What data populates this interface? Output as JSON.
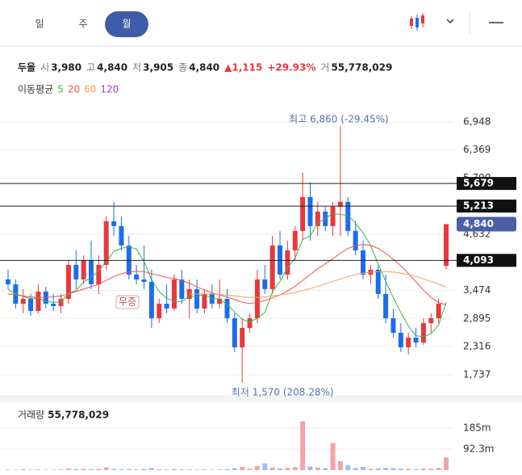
{
  "header": {
    "tabs": [
      "일",
      "주",
      "월"
    ],
    "active_tab": 2,
    "stock": {
      "name": "두올",
      "open_label": "시",
      "open": "3,980",
      "high_label": "고",
      "high": "4,840",
      "low_label": "저",
      "low": "3,905",
      "close_label": "종",
      "close": "4,840",
      "change": "▲1,115",
      "change_pct": "+29.93%",
      "volume_label": "거",
      "volume": "55,778,029"
    },
    "ma_label": "이동평균"
  },
  "chart_data": {
    "type": "candlestick",
    "up_color": "#e8383d",
    "down_color": "#1c6ee8",
    "categories": [
      null,
      null,
      null,
      null,
      null,
      null,
      null,
      null,
      null,
      null,
      null,
      null,
      null,
      null,
      null,
      null,
      null,
      null,
      null,
      null,
      null,
      null,
      null,
      null,
      null,
      null,
      null,
      null,
      null,
      null,
      null,
      null,
      null,
      null,
      null,
      null,
      null,
      null,
      null,
      null,
      null,
      null,
      null,
      null,
      null,
      null,
      null,
      null,
      null,
      null,
      null,
      null,
      null,
      null,
      null,
      null,
      null,
      null,
      null
    ],
    "open": [
      3700,
      3600,
      3200,
      3300,
      3050,
      3450,
      3200,
      3150,
      3300,
      4000,
      3700,
      4100,
      3600,
      4000,
      4900,
      4800,
      4400,
      3800,
      3700,
      3650,
      2900,
      3200,
      3100,
      3700,
      3300,
      3500,
      3100,
      3400,
      3200,
      3300,
      2900,
      2300,
      2700,
      2900,
      3700,
      3500,
      4400,
      3800,
      4300,
      4700,
      5400,
      4800,
      5100,
      4800,
      5200,
      5300,
      4700,
      4300,
      3800,
      3900,
      3400,
      2900,
      2600,
      2300,
      2500,
      2400,
      2800,
      2900,
      3980
    ],
    "high": [
      3900,
      3700,
      3500,
      3400,
      3600,
      3550,
      3400,
      3400,
      4100,
      4300,
      4200,
      4500,
      4200,
      5000,
      5300,
      5000,
      4600,
      4000,
      4400,
      3900,
      3300,
      3600,
      3800,
      3900,
      3700,
      3700,
      3500,
      3600,
      3700,
      3500,
      3000,
      2900,
      3000,
      3900,
      4000,
      4600,
      4700,
      4500,
      4800,
      5900,
      5700,
      5300,
      5200,
      5300,
      6860,
      5400,
      4900,
      4500,
      4000,
      4000,
      3800,
      3100,
      2800,
      2600,
      2700,
      2900,
      3000,
      3300,
      4840
    ],
    "low": [
      3500,
      3100,
      3000,
      2950,
      3000,
      3100,
      3050,
      3000,
      3200,
      3500,
      3600,
      3500,
      3400,
      3900,
      4600,
      4300,
      3700,
      3600,
      3500,
      2700,
      2800,
      3000,
      3050,
      3200,
      2900,
      3000,
      3000,
      3100,
      3100,
      2800,
      2200,
      1570,
      2600,
      2800,
      3400,
      3400,
      3700,
      3700,
      4100,
      4500,
      4500,
      4600,
      4700,
      4600,
      4600,
      4600,
      4200,
      3700,
      3600,
      3300,
      2800,
      2500,
      2200,
      2150,
      2300,
      2350,
      2600,
      2800,
      3905
    ],
    "close": [
      3600,
      3200,
      3300,
      3050,
      3450,
      3200,
      3150,
      3300,
      4000,
      3700,
      4100,
      3600,
      4000,
      4900,
      4800,
      4400,
      3800,
      3700,
      3650,
      2900,
      3200,
      3100,
      3700,
      3300,
      3500,
      3100,
      3400,
      3200,
      3300,
      2900,
      2300,
      2700,
      2900,
      3700,
      3500,
      4400,
      3800,
      4300,
      4700,
      5400,
      4800,
      5100,
      4800,
      5200,
      5300,
      4700,
      4300,
      3800,
      3900,
      3400,
      2900,
      2600,
      2300,
      2500,
      2400,
      2800,
      2900,
      3200,
      4840
    ],
    "series": [
      {
        "name": "5",
        "color": "#3cb44b",
        "values": [
          3500,
          3400,
          3350,
          3300,
          3320,
          3240,
          3230,
          3230,
          3420,
          3470,
          3650,
          3740,
          3880,
          4060,
          4280,
          4340,
          4380,
          4320,
          4070,
          3690,
          3450,
          3310,
          3250,
          3240,
          3360,
          3340,
          3400,
          3300,
          3300,
          3180,
          3020,
          2880,
          2820,
          2900,
          3020,
          3440,
          3660,
          3940,
          4140,
          4520,
          4600,
          4860,
          4960,
          5060,
          5040,
          5020,
          4860,
          4660,
          4400,
          4020,
          3660,
          3320,
          3020,
          2740,
          2540,
          2520,
          2580,
          2760,
          3230
        ]
      },
      {
        "name": "20",
        "color": "#f0534f",
        "values": [
          3400,
          3380,
          3360,
          3340,
          3330,
          3330,
          3340,
          3360,
          3400,
          3450,
          3500,
          3550,
          3600,
          3680,
          3760,
          3820,
          3850,
          3870,
          3860,
          3820,
          3780,
          3740,
          3720,
          3680,
          3620,
          3550,
          3480,
          3420,
          3380,
          3340,
          3280,
          3230,
          3200,
          3230,
          3260,
          3320,
          3380,
          3460,
          3560,
          3680,
          3800,
          3920,
          4020,
          4130,
          4240,
          4340,
          4400,
          4420,
          4400,
          4340,
          4240,
          4120,
          3980,
          3820,
          3650,
          3480,
          3330,
          3220,
          3180
        ]
      },
      {
        "name": "60",
        "color": "#f5a05a",
        "values": [
          null,
          null,
          null,
          null,
          null,
          null,
          null,
          null,
          null,
          null,
          null,
          null,
          null,
          null,
          null,
          null,
          null,
          null,
          null,
          null,
          null,
          null,
          null,
          null,
          3400,
          3400,
          3400,
          3400,
          3390,
          3380,
          3360,
          3340,
          3330,
          3330,
          3340,
          3360,
          3380,
          3400,
          3430,
          3470,
          3510,
          3560,
          3610,
          3660,
          3710,
          3760,
          3800,
          3830,
          3850,
          3860,
          3860,
          3850,
          3830,
          3800,
          3760,
          3710,
          3660,
          3600,
          3540
        ]
      },
      {
        "name": "120",
        "color": "#8e44c9",
        "values": [
          null,
          null,
          null,
          null,
          null,
          null,
          null,
          null,
          null,
          null,
          null,
          null,
          null,
          null,
          null,
          null,
          null,
          null,
          null,
          null,
          null,
          null,
          null,
          null,
          null,
          null,
          null,
          null,
          null,
          null,
          null,
          null,
          null,
          null,
          null,
          null,
          null,
          null,
          null,
          null,
          null,
          null,
          null,
          null,
          null,
          null,
          null,
          null,
          null,
          null,
          null,
          null,
          null,
          null,
          null,
          null,
          null,
          null,
          null
        ]
      }
    ],
    "ylim": [
      1500,
      7130
    ],
    "yticks": [
      {
        "value": 1737,
        "label": "1,737"
      },
      {
        "value": 2316,
        "label": "2,316"
      },
      {
        "value": 2895,
        "label": "2,895"
      },
      {
        "value": 3474,
        "label": "3,474"
      },
      {
        "value": 4632,
        "label": "4,632"
      },
      {
        "value": 5790,
        "label": "5,790"
      },
      {
        "value": 6369,
        "label": "6,369"
      },
      {
        "value": 6948,
        "label": "6,948"
      }
    ],
    "grid": true,
    "price_lines": [
      {
        "value": 5679,
        "label": "5,679"
      },
      {
        "value": 5213,
        "label": "5,213"
      },
      {
        "value": 4093,
        "label": "4,093"
      }
    ],
    "current_price": {
      "value": 4840,
      "label": "4,840",
      "color": "#4a5fa8"
    },
    "high_annotation": "최고 6,860 (-29.45%)",
    "low_annotation": "최저 1,570 (208.28%)",
    "event_annotation": "무증",
    "volume": {
      "label": "거래량",
      "total": "55,778,029",
      "ylim": [
        0,
        270000000
      ],
      "yticks": [
        {
          "value": 92300000,
          "label": "92.3m"
        },
        {
          "value": 185000000,
          "label": "185m"
        }
      ],
      "values": [
        3000000,
        2000000,
        4000000,
        2000000,
        3000000,
        2000000,
        2000000,
        3000000,
        8000000,
        5000000,
        6000000,
        4000000,
        5000000,
        12000000,
        6000000,
        4000000,
        5000000,
        3000000,
        6000000,
        10000000,
        4000000,
        3000000,
        5000000,
        3000000,
        3000000,
        2000000,
        3000000,
        2000000,
        3000000,
        5000000,
        9000000,
        14000000,
        6000000,
        18000000,
        30000000,
        12000000,
        8000000,
        10000000,
        14000000,
        215000000,
        16000000,
        12000000,
        9000000,
        120000000,
        40000000,
        22000000,
        10000000,
        14000000,
        6000000,
        8000000,
        10000000,
        9000000,
        7000000,
        6000000,
        5000000,
        7000000,
        6000000,
        10000000,
        55778029
      ]
    }
  }
}
